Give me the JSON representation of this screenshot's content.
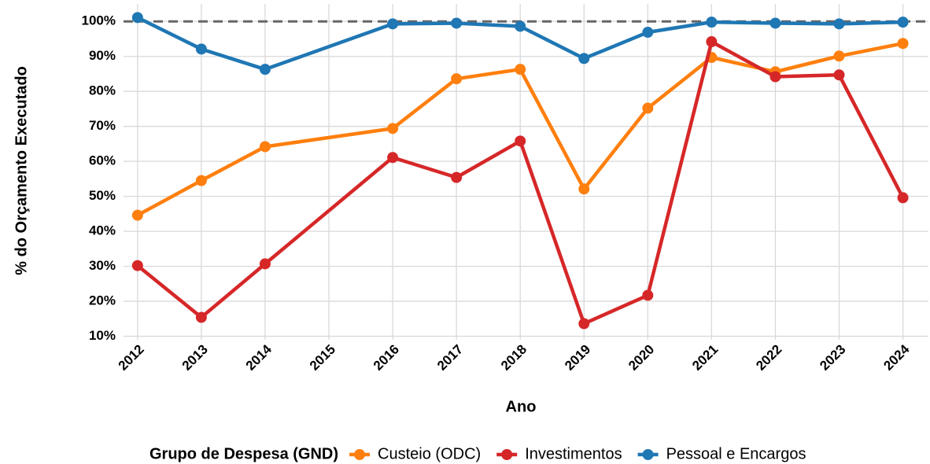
{
  "chart_data": {
    "type": "line",
    "x_label": "Ano",
    "y_label": "% do Orçamento Executado",
    "legend_title": "Grupo de Despesa (GND)",
    "legend_position": "bottom",
    "x": [
      2012,
      2013,
      2014,
      2016,
      2017,
      2018,
      2019,
      2020,
      2021,
      2022,
      2023,
      2024
    ],
    "series": [
      {
        "name": "Custeio (ODC)",
        "color": "#ff7f0e",
        "values": [
          44.6,
          54.5,
          64.2,
          69.4,
          83.6,
          86.3,
          52.1,
          75.2,
          89.7,
          85.6,
          90.1,
          93.7
        ]
      },
      {
        "name": "Investimentos",
        "color": "#d62728",
        "values": [
          30.2,
          15.4,
          30.7,
          61.1,
          55.4,
          65.8,
          13.6,
          21.7,
          94.2,
          84.2,
          84.7,
          49.6
        ]
      },
      {
        "name": "Pessoal e Encargos",
        "color": "#1f77b4",
        "values": [
          101.1,
          92.1,
          86.3,
          99.3,
          99.5,
          98.6,
          89.4,
          96.9,
          99.8,
          99.5,
          99.3,
          99.8
        ]
      }
    ],
    "reference_line": 100,
    "xlim": [
      2011.78,
      2024.4
    ],
    "xticks": [
      2012,
      2013,
      2014,
      2015,
      2016,
      2017,
      2018,
      2019,
      2020,
      2021,
      2022,
      2023,
      2024
    ],
    "ylim": [
      9,
      105
    ],
    "yticks": [
      {
        "value": 10,
        "label": "10%"
      },
      {
        "value": 20,
        "label": "20%"
      },
      {
        "value": 30,
        "label": "30%"
      },
      {
        "value": 40,
        "label": "40%"
      },
      {
        "value": 50,
        "label": "50%"
      },
      {
        "value": 60,
        "label": "60%"
      },
      {
        "value": 70,
        "label": "70%"
      },
      {
        "value": 80,
        "label": "80%"
      },
      {
        "value": 90,
        "label": "90%"
      },
      {
        "value": 100,
        "label": "100%"
      }
    ],
    "grid": true
  }
}
